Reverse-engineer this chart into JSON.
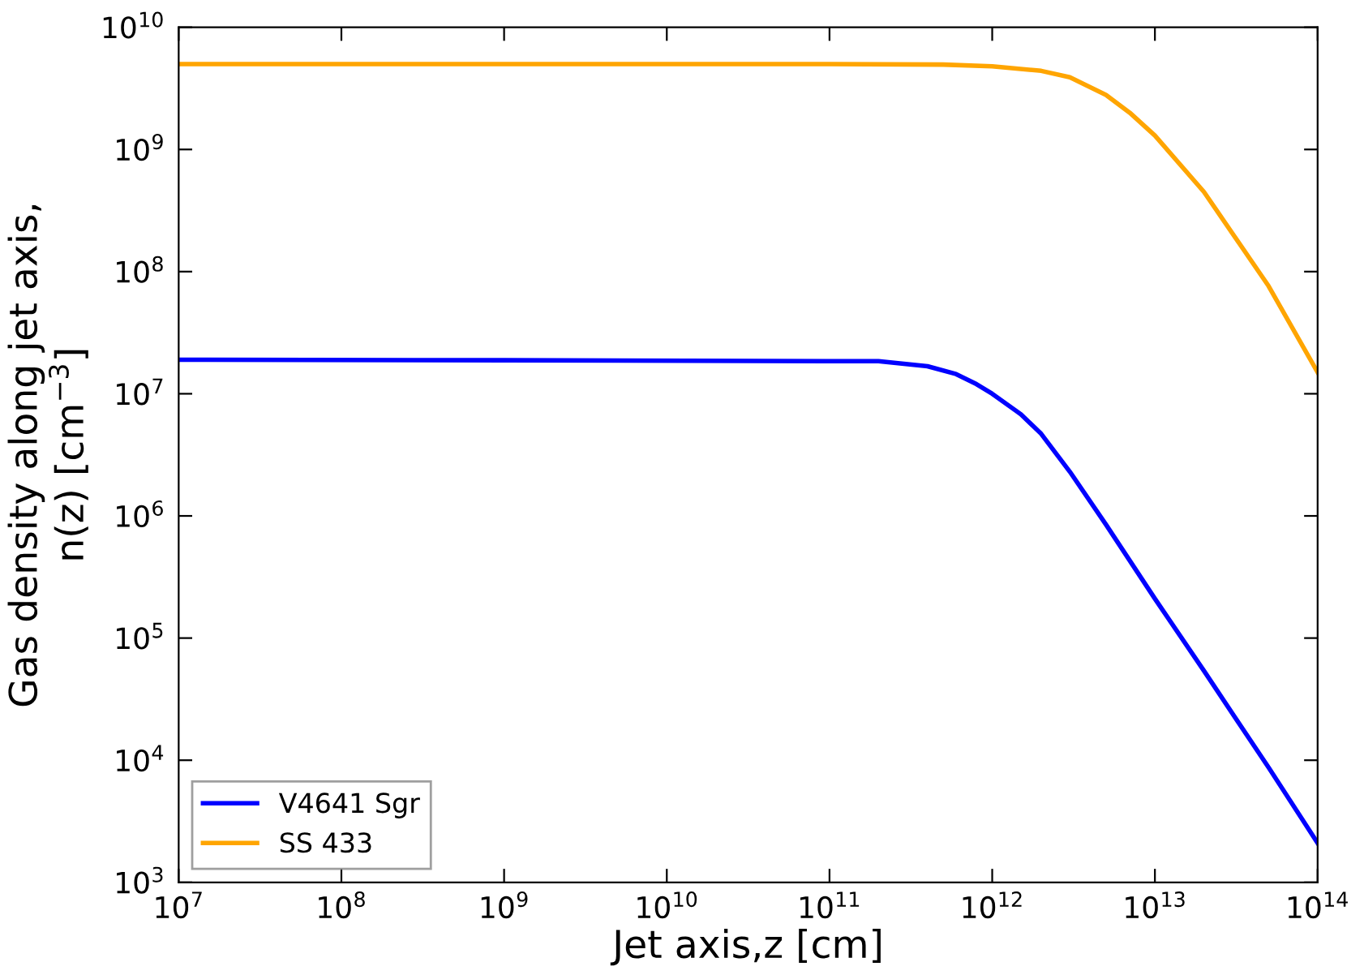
{
  "chart_data": {
    "type": "line",
    "xlabel": "Jet axis,z [cm]",
    "ylabel": "Gas density along jet axis,\nn(z) [cm$^{−3}$]",
    "log": "xy",
    "xlim": [
      10000000.0,
      100000000000000.0
    ],
    "ylim": [
      1000.0,
      10000000000.0
    ],
    "xticks": [
      {
        "value": 10000000.0,
        "label": "10$^{7}$"
      },
      {
        "value": 100000000.0,
        "label": "10$^{8}$"
      },
      {
        "value": 1000000000.0,
        "label": "10$^{9}$"
      },
      {
        "value": 10000000000.0,
        "label": "10$^{10}$"
      },
      {
        "value": 100000000000.0,
        "label": "10$^{11}$"
      },
      {
        "value": 1000000000000.0,
        "label": "10$^{12}$"
      },
      {
        "value": 10000000000000.0,
        "label": "10$^{13}$"
      },
      {
        "value": 100000000000000.0,
        "label": "10$^{14}$"
      }
    ],
    "yticks": [
      {
        "value": 1000.0,
        "label": "10$^{3}$"
      },
      {
        "value": 10000.0,
        "label": "10$^{4}$"
      },
      {
        "value": 100000.0,
        "label": "10$^{5}$"
      },
      {
        "value": 1000000.0,
        "label": "10$^{6}$"
      },
      {
        "value": 10000000.0,
        "label": "10$^{7}$"
      },
      {
        "value": 100000000.0,
        "label": "10$^{8}$"
      },
      {
        "value": 1000000000.0,
        "label": "10$^{9}$"
      },
      {
        "value": 10000000000.0,
        "label": "10$^{10}$"
      }
    ],
    "grid": false,
    "legend": "bottom left",
    "marker": "none",
    "line_style": "solid",
    "series": [
      {
        "name": "V4641 Sgr",
        "color": "#0000ff",
        "x": [
          10000000.0,
          1000000000.0,
          100000000000.0,
          200000000000.0,
          400000000000.0,
          600000000000.0,
          800000000000.0,
          1000000000000.0,
          1500000000000.0,
          2000000000000.0,
          3000000000000.0,
          5000000000000.0,
          10000000000000.0,
          20000000000000.0,
          50000000000000.0,
          100000000000000.0
        ],
        "values": [
          19000000.0,
          18800000.0,
          18500000.0,
          18500000.0,
          16800000.0,
          14500000.0,
          12000000.0,
          10000000.0,
          6800000.0,
          4700000.0,
          2300000.0,
          850000.0,
          210000.0,
          54000.0,
          8700.0,
          2100.0
        ]
      },
      {
        "name": "SS 433",
        "color": "#ffa500",
        "x": [
          10000000.0,
          100000000000.0,
          500000000000.0,
          1000000000000.0,
          2000000000000.0,
          3000000000000.0,
          5000000000000.0,
          7000000000000.0,
          10000000000000.0,
          20000000000000.0,
          50000000000000.0,
          100000000000000.0
        ],
        "values": [
          5000000000.0,
          5000000000.0,
          4950000000.0,
          4800000000.0,
          4400000000.0,
          3900000000.0,
          2800000000.0,
          2000000000.0,
          1300000000.0,
          450000000.0,
          76000000.0,
          15000000.0
        ]
      }
    ]
  }
}
